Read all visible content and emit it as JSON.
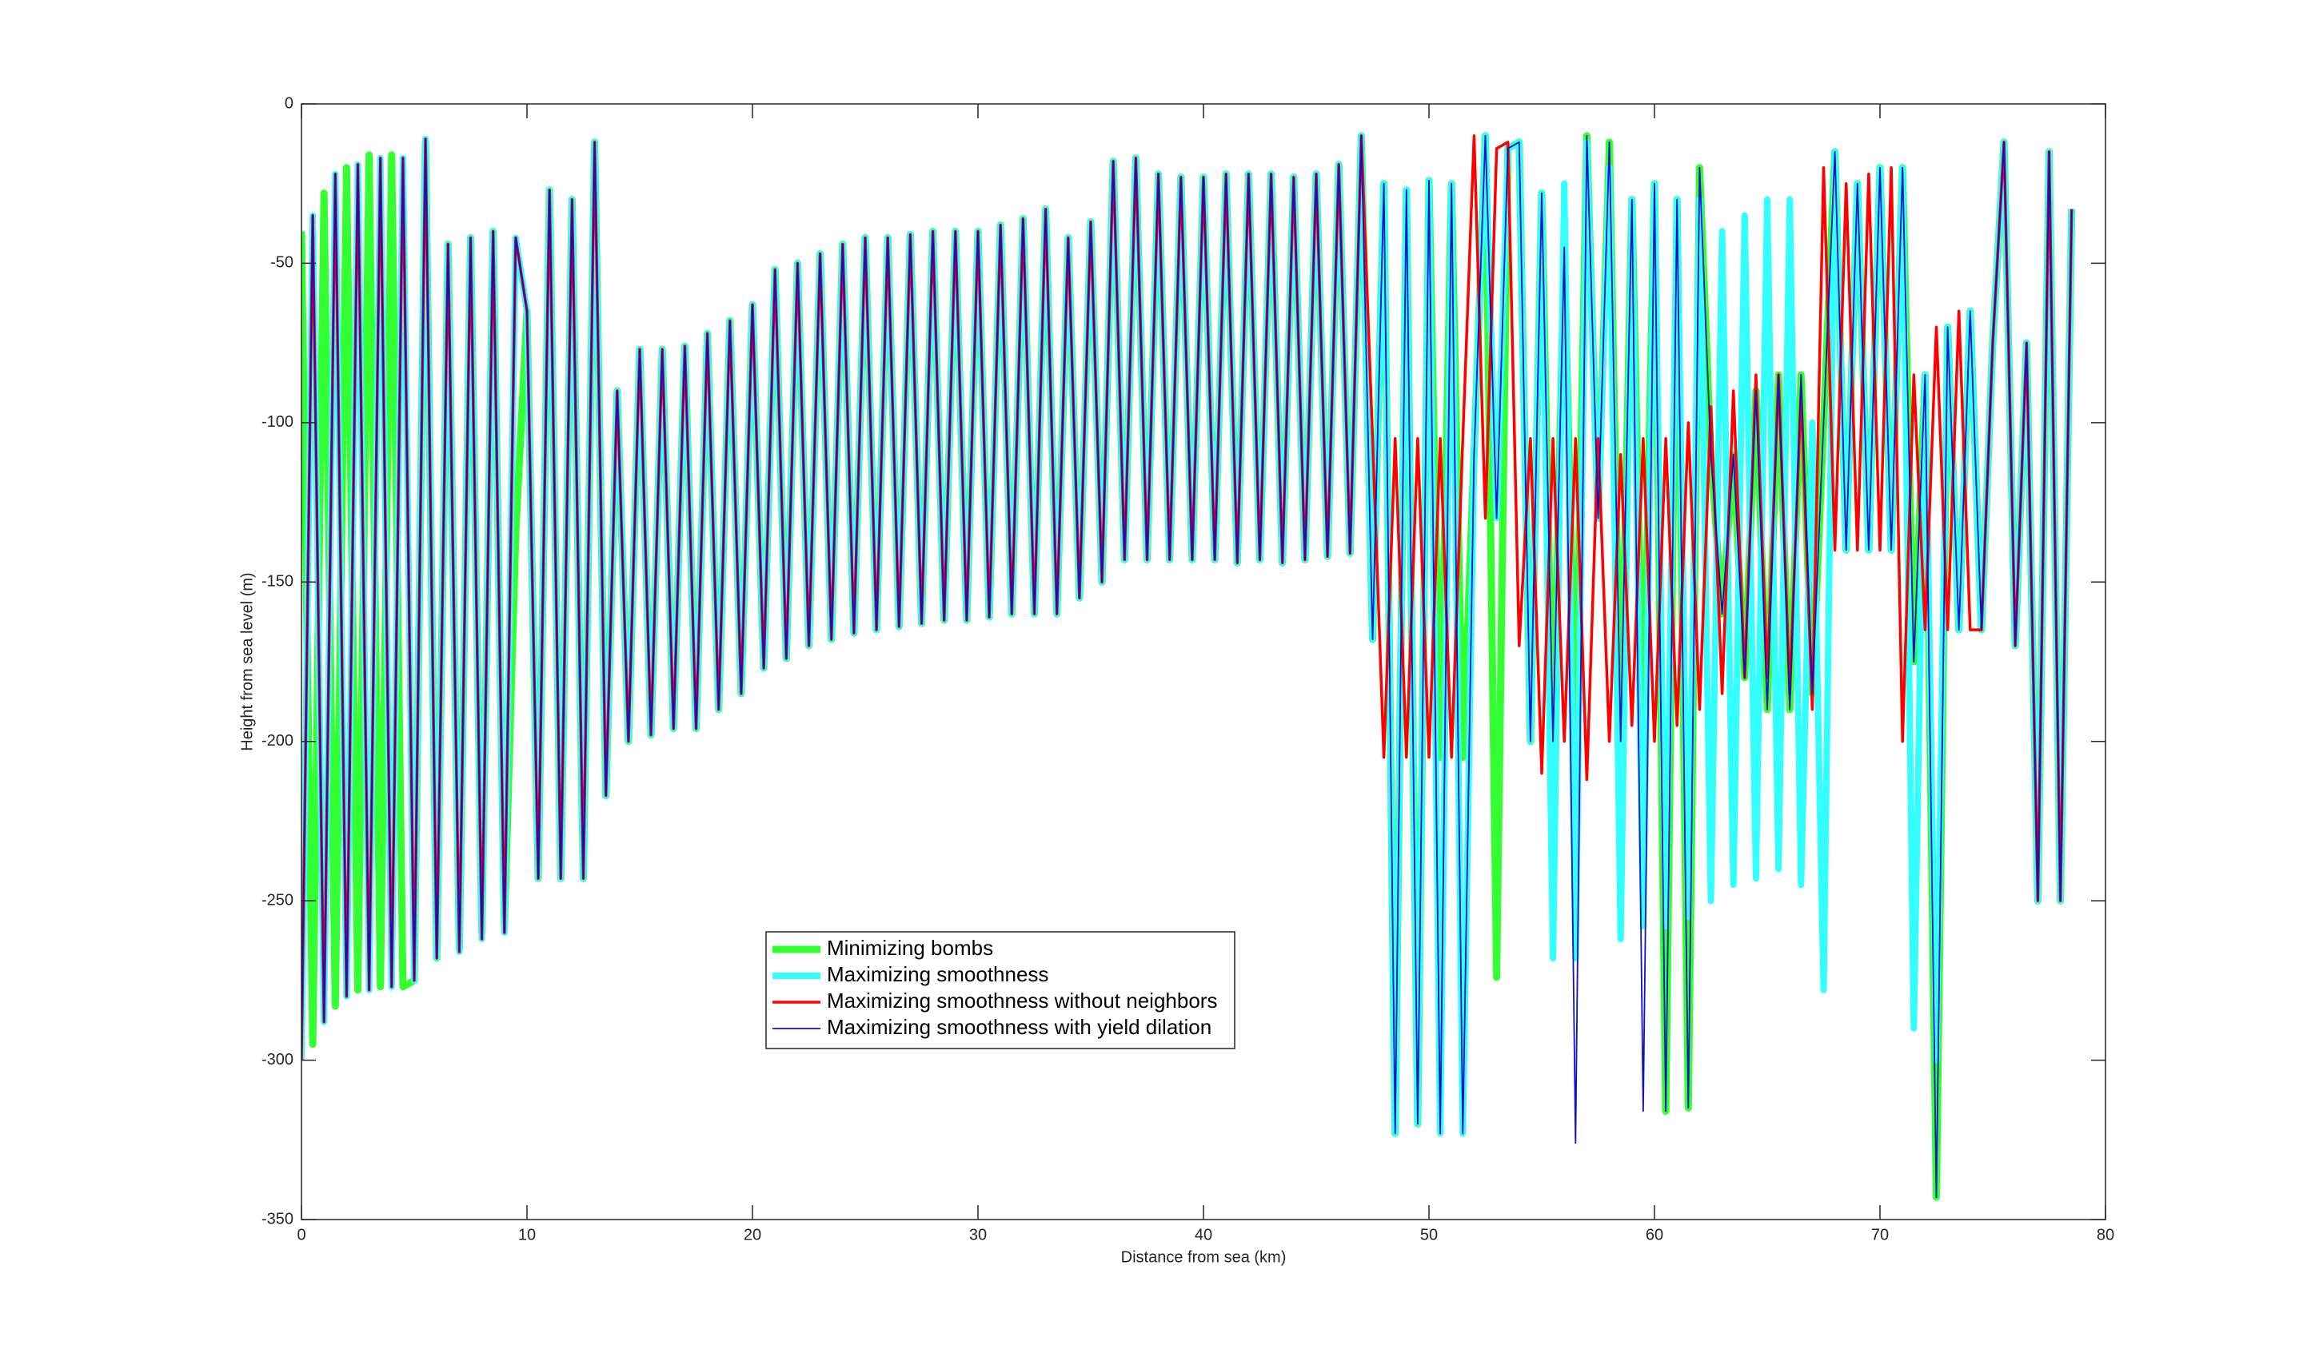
{
  "chart_data": {
    "type": "line",
    "xlabel": "Distance from sea (km)",
    "ylabel": "Height from sea level (m)",
    "xlim": [
      0,
      80
    ],
    "xticks": [
      0,
      10,
      20,
      30,
      40,
      50,
      60,
      70,
      80
    ],
    "ylim": [
      -350,
      0
    ],
    "yticks": [
      -350,
      -300,
      -250,
      -200,
      -150,
      -100,
      -50,
      0
    ],
    "x": [
      0,
      0.5,
      1,
      1.5,
      2,
      2.5,
      3,
      3.5,
      4,
      4.5,
      5,
      5.5,
      6,
      6.5,
      7,
      7.5,
      8,
      8.5,
      9,
      9.5,
      10,
      10.5,
      11,
      11.5,
      12,
      12.5,
      13,
      13.5,
      14,
      14.5,
      15,
      15.5,
      16,
      16.5,
      17,
      17.5,
      18,
      18.5,
      19,
      19.5,
      20,
      20.5,
      21,
      21.5,
      22,
      22.5,
      23,
      23.5,
      24,
      24.5,
      25,
      25.5,
      26,
      26.5,
      27,
      27.5,
      28,
      28.5,
      29,
      29.5,
      30,
      30.5,
      31,
      31.5,
      32,
      32.5,
      33,
      33.5,
      34,
      34.5,
      35,
      35.5,
      36,
      36.5,
      37,
      37.5,
      38,
      38.5,
      39,
      39.5,
      40,
      40.5,
      41,
      41.5,
      42,
      42.5,
      43,
      43.5,
      44,
      44.5,
      45,
      45.5,
      46,
      46.5,
      47,
      47.5,
      48,
      48.5,
      49,
      49.5,
      50,
      50.5,
      51,
      51.5,
      52,
      52.5,
      53,
      53.5,
      54,
      54.5,
      55,
      55.5,
      56,
      56.5,
      57,
      57.5,
      58,
      58.5,
      59,
      59.5,
      60,
      60.5,
      61,
      61.5,
      62,
      62.5,
      63,
      63.5,
      64,
      64.5,
      65,
      65.5,
      66,
      66.5,
      67,
      67.5,
      68,
      68.5,
      69,
      69.5,
      70,
      70.5,
      71,
      71.5,
      72,
      72.5,
      73,
      73.5,
      74,
      74.5,
      75,
      75.5,
      76,
      76.5,
      77,
      77.5,
      78,
      78.5
    ],
    "series": [
      {
        "name": "Minimizing bombs",
        "color": "#33ff33",
        "values": [
          -40,
          -295,
          -28,
          -283,
          -20,
          -278,
          -16,
          -277,
          -16,
          -277,
          -275,
          -12,
          -268,
          -44,
          -265,
          -42,
          -260,
          -40,
          -258,
          -135,
          -65,
          -243,
          -27,
          -243,
          -30,
          -243,
          -12,
          -217,
          -90,
          -200,
          -77,
          -198,
          -77,
          -196,
          -76,
          -196,
          -72,
          -190,
          -68,
          -185,
          -63,
          -177,
          -52,
          -174,
          -50,
          -170,
          -47,
          -168,
          -44,
          -166,
          -42,
          -165,
          -42,
          -164,
          -41,
          -163,
          -40,
          -162,
          -40,
          -162,
          -40,
          -161,
          -38,
          -160,
          -36,
          -160,
          -33,
          -160,
          -42,
          -155,
          -37,
          -150,
          -18,
          -143,
          -17,
          -143,
          -22,
          -143,
          -23,
          -143,
          -23,
          -143,
          -22,
          -144,
          -22,
          -143,
          -22,
          -144,
          -23,
          -143,
          -22,
          -142,
          -19,
          -141,
          -10,
          -168,
          -25,
          -323,
          -27,
          -320,
          -24,
          -205,
          -25,
          -205,
          -110,
          -10,
          -274,
          -14,
          -12,
          -200,
          -28,
          -205,
          -45,
          -200,
          -10,
          -130,
          -12,
          -200,
          -30,
          -200,
          -25,
          -316,
          -30,
          -315,
          -20,
          -110,
          -160,
          -110,
          -180,
          -90,
          -190,
          -85,
          -190,
          -85,
          -185,
          -100,
          -15,
          -140,
          -25,
          -140,
          -20,
          -140,
          -20,
          -175,
          -85,
          -343,
          -70,
          -165,
          -65,
          -165,
          -75,
          -12,
          -170,
          -75,
          -250,
          -15,
          -250,
          -33
        ]
      },
      {
        "name": "Maximizing smoothness",
        "color": "#33ffff",
        "values": [
          -300,
          -35,
          -288,
          -22,
          -280,
          -19,
          -278,
          -17,
          -277,
          -17,
          -275,
          -11,
          -268,
          -44,
          -266,
          -42,
          -262,
          -40,
          -260,
          -42,
          -65,
          -243,
          -27,
          -243,
          -30,
          -243,
          -12,
          -217,
          -90,
          -200,
          -77,
          -198,
          -77,
          -196,
          -76,
          -196,
          -72,
          -190,
          -68,
          -185,
          -63,
          -177,
          -52,
          -174,
          -50,
          -170,
          -47,
          -168,
          -44,
          -166,
          -42,
          -165,
          -42,
          -164,
          -41,
          -163,
          -40,
          -162,
          -40,
          -162,
          -40,
          -161,
          -38,
          -160,
          -36,
          -160,
          -33,
          -160,
          -42,
          -155,
          -37,
          -150,
          -18,
          -143,
          -17,
          -143,
          -22,
          -143,
          -23,
          -143,
          -23,
          -143,
          -22,
          -144,
          -22,
          -143,
          -22,
          -144,
          -23,
          -143,
          -22,
          -142,
          -19,
          -141,
          -10,
          -168,
          -25,
          -323,
          -27,
          -320,
          -24,
          -323,
          -25,
          -323,
          -110,
          -10,
          -130,
          -14,
          -12,
          -200,
          -28,
          -268,
          -25,
          -268,
          -12,
          -130,
          -20,
          -262,
          -30,
          -258,
          -25,
          -258,
          -30,
          -255,
          -30,
          -250,
          -40,
          -245,
          -35,
          -243,
          -30,
          -240,
          -30,
          -245,
          -100,
          -278,
          -15,
          -140,
          -25,
          -140,
          -20,
          -140,
          -20,
          -290,
          -85,
          -300,
          -70,
          -165,
          -65,
          -165,
          -75,
          -12,
          -170,
          -75,
          -250,
          -15,
          -250,
          -33
        ]
      },
      {
        "name": "Maximizing smoothness without neighbors",
        "color": "#ff0000",
        "values": [
          -300,
          -35,
          -288,
          -22,
          -280,
          -19,
          -278,
          -17,
          -277,
          -17,
          -275,
          -11,
          -268,
          -44,
          -266,
          -42,
          -262,
          -40,
          -260,
          -42,
          -65,
          -243,
          -27,
          -243,
          -30,
          -243,
          -12,
          -217,
          -90,
          -200,
          -77,
          -198,
          -77,
          -196,
          -76,
          -196,
          -72,
          -190,
          -68,
          -185,
          -63,
          -177,
          -52,
          -174,
          -50,
          -170,
          -47,
          -168,
          -44,
          -166,
          -42,
          -165,
          -42,
          -164,
          -41,
          -163,
          -40,
          -162,
          -40,
          -162,
          -40,
          -161,
          -38,
          -160,
          -36,
          -160,
          -33,
          -160,
          -42,
          -155,
          -37,
          -150,
          -18,
          -143,
          -17,
          -143,
          -22,
          -143,
          -23,
          -143,
          -23,
          -143,
          -22,
          -144,
          -22,
          -143,
          -22,
          -144,
          -23,
          -143,
          -22,
          -142,
          -19,
          -141,
          -10,
          -105,
          -205,
          -105,
          -205,
          -105,
          -205,
          -105,
          -205,
          -105,
          -10,
          -130,
          -14,
          -12,
          -170,
          -105,
          -210,
          -105,
          -200,
          -105,
          -212,
          -105,
          -200,
          -110,
          -195,
          -105,
          -200,
          -105,
          -195,
          -100,
          -190,
          -95,
          -185,
          -90,
          -180,
          -85,
          -180,
          -85,
          -185,
          -90,
          -190,
          -20,
          -140,
          -25,
          -140,
          -22,
          -140,
          -20,
          -200,
          -85,
          -165,
          -70,
          -165,
          -65,
          -165,
          -165,
          -75,
          -12,
          -170,
          -75,
          -250,
          -15,
          -250,
          -33
        ]
      },
      {
        "name": "Maximizing smoothness with yield dilation",
        "color": "#1010cc",
        "values": [
          -300,
          -35,
          -288,
          -22,
          -280,
          -19,
          -278,
          -17,
          -277,
          -17,
          -275,
          -11,
          -268,
          -44,
          -266,
          -42,
          -262,
          -40,
          -260,
          -42,
          -65,
          -243,
          -27,
          -243,
          -30,
          -243,
          -12,
          -217,
          -90,
          -200,
          -77,
          -198,
          -77,
          -196,
          -76,
          -196,
          -72,
          -190,
          -68,
          -185,
          -63,
          -177,
          -52,
          -174,
          -50,
          -170,
          -47,
          -168,
          -44,
          -166,
          -42,
          -165,
          -42,
          -164,
          -41,
          -163,
          -40,
          -162,
          -40,
          -162,
          -40,
          -161,
          -38,
          -160,
          -36,
          -160,
          -33,
          -160,
          -42,
          -155,
          -37,
          -150,
          -18,
          -143,
          -17,
          -143,
          -22,
          -143,
          -23,
          -143,
          -23,
          -143,
          -22,
          -144,
          -22,
          -143,
          -22,
          -144,
          -23,
          -143,
          -22,
          -142,
          -19,
          -141,
          -10,
          -168,
          -25,
          -323,
          -27,
          -320,
          -24,
          -323,
          -25,
          -323,
          -110,
          -10,
          -130,
          -14,
          -12,
          -200,
          -28,
          -200,
          -45,
          -326,
          -10,
          -130,
          -12,
          -200,
          -30,
          -316,
          -25,
          -316,
          -30,
          -315,
          -20,
          -110,
          -160,
          -110,
          -180,
          -90,
          -190,
          -85,
          -190,
          -85,
          -185,
          -100,
          -15,
          -140,
          -25,
          -140,
          -20,
          -140,
          -20,
          -175,
          -85,
          -343,
          -70,
          -165,
          -65,
          -165,
          -75,
          -12,
          -170,
          -75,
          -250,
          -15,
          -250,
          -33
        ]
      }
    ]
  }
}
